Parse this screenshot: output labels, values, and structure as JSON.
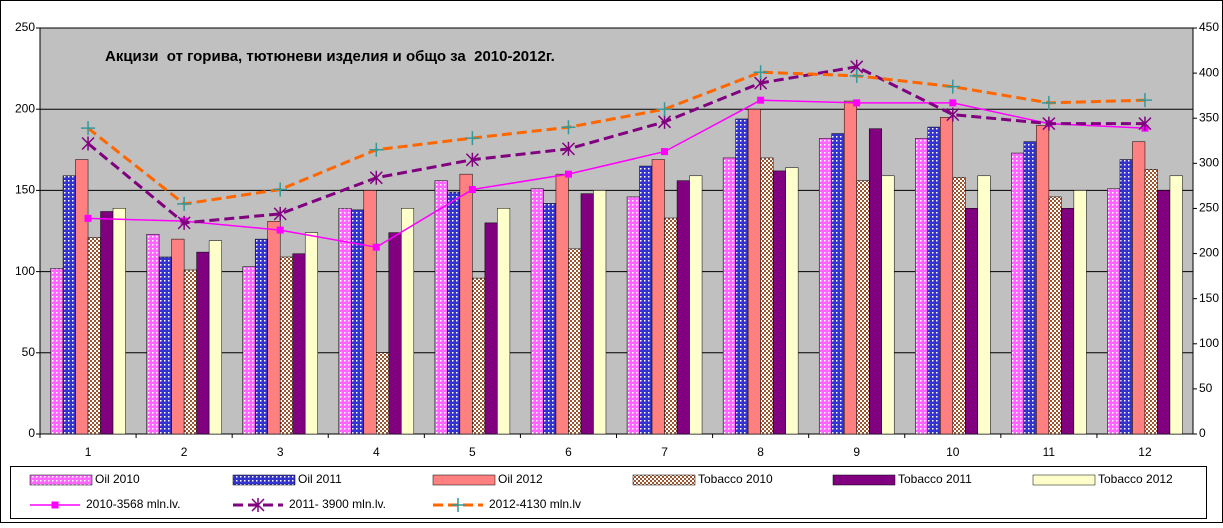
{
  "chart_data": {
    "type": "bar",
    "title": "Акцизи  от горива, тютюневи изделия и общо за  2010-2012г.",
    "categories": [
      "1",
      "2",
      "3",
      "4",
      "5",
      "6",
      "7",
      "8",
      "9",
      "10",
      "11",
      "12"
    ],
    "ylim": [
      0,
      250
    ],
    "yticks": [
      0,
      50,
      100,
      150,
      200,
      250
    ],
    "y2lim": [
      0,
      450
    ],
    "y2ticks": [
      0,
      50,
      100,
      150,
      200,
      250,
      300,
      350,
      400,
      450
    ],
    "grid": true,
    "legend": "bottom",
    "series": [
      {
        "name": "Oil 2010",
        "color": "#ff66ff",
        "values": [
          102,
          123,
          103,
          139,
          156,
          151,
          146,
          170,
          182,
          182,
          173,
          151
        ]
      },
      {
        "name": "Oil 2011",
        "color": "#3333cc",
        "values": [
          159,
          109,
          120,
          138,
          149,
          142,
          165,
          194,
          185,
          189,
          180,
          169
        ]
      },
      {
        "name": "Oil 2012",
        "color": "#ff8080",
        "values": [
          169,
          120,
          131,
          150,
          160,
          160,
          169,
          200,
          205,
          195,
          190,
          180
        ]
      },
      {
        "name": "Tobacco 2010",
        "color": "#a0522d",
        "values": [
          121,
          101,
          109,
          50,
          96,
          114,
          133,
          170,
          156,
          158,
          146,
          163
        ]
      },
      {
        "name": "Tobacco 2011",
        "color": "#800080",
        "values": [
          137,
          112,
          111,
          124,
          130,
          148,
          156,
          162,
          188,
          139,
          139,
          150
        ]
      },
      {
        "name": "Tobacco 2012",
        "color": "#ffffcc",
        "values": [
          139,
          119,
          124,
          139,
          139,
          150,
          159,
          164,
          159,
          159,
          150,
          159
        ]
      },
      {
        "name": "2010-3568 mln.lv.",
        "type": "line",
        "axis": "y2",
        "color": "#ff00ff",
        "marker": "square",
        "values": [
          239,
          236,
          226,
          207,
          271,
          288,
          313,
          370,
          367,
          367,
          344,
          339
        ]
      },
      {
        "name": "2011- 3900 mln.lv.",
        "type": "line",
        "axis": "y2",
        "color": "#800080",
        "dashed": true,
        "marker": "x",
        "values": [
          322,
          234,
          244,
          284,
          304,
          316,
          346,
          389,
          407,
          354,
          344,
          344
        ]
      },
      {
        "name": "2012-4130 mln.lv",
        "type": "line",
        "axis": "y2",
        "color": "#ff6600",
        "dashed": true,
        "marker": "plus",
        "values": [
          339,
          255,
          271,
          315,
          328,
          340,
          360,
          401,
          397,
          385,
          367,
          370
        ]
      }
    ]
  }
}
